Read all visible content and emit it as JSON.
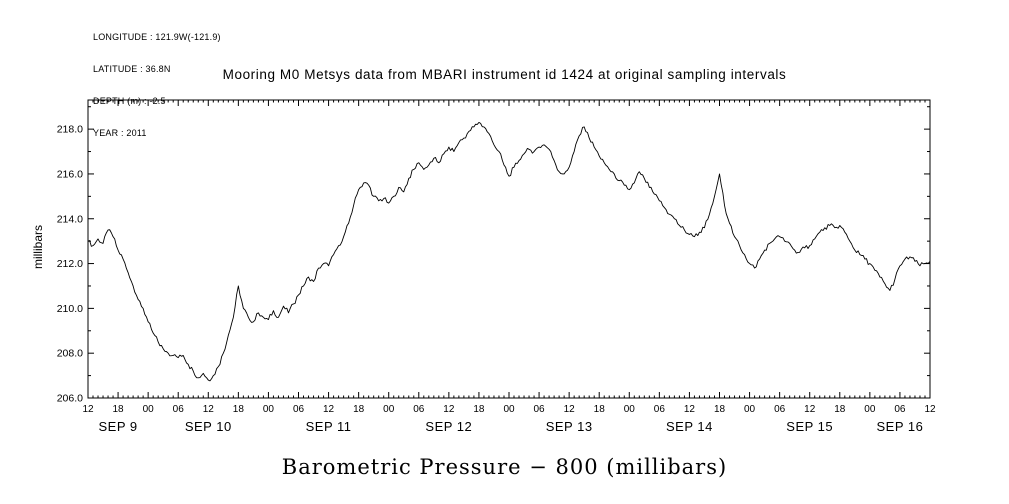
{
  "meta": {
    "lines": [
      "LONGITUDE : 121.9W(-121.9)",
      "LATITUDE : 36.8N",
      "DEPTH (m) : -2.5",
      "YEAR : 2011"
    ]
  },
  "title": "Mooring M0 Metsys data from MBARI instrument id 1424 at original sampling intervals",
  "bottom_title": "Barometric Pressure − 800 (millibars)",
  "chart_data": {
    "type": "line",
    "title": "Mooring M0 Metsys data from MBARI instrument id 1424 at original sampling intervals",
    "xlabel": "Barometric Pressure − 800 (millibars)",
    "ylabel": "millibars",
    "line_color": "#000000",
    "background": "#ffffff",
    "grid": false,
    "legend": "none",
    "ylim": [
      206.0,
      219.3
    ],
    "ytick_step_major": 2.0,
    "ytick_step_minor": 1.0,
    "ytick_labels": [
      "206.0",
      "208.0",
      "210.0",
      "212.0",
      "214.0",
      "216.0",
      "218.0"
    ],
    "x_start_hour_of_day": 12,
    "x_total_hours": 168,
    "x_major_step_hours": 6,
    "x_minor_step_hours": 1,
    "x_tick_labels": [
      "12",
      "18",
      "00",
      "06",
      "12",
      "18",
      "00",
      "06",
      "12",
      "18",
      "00",
      "06",
      "12",
      "18",
      "00",
      "06",
      "12",
      "18",
      "00",
      "06",
      "12",
      "18",
      "00",
      "06",
      "12",
      "18",
      "00",
      "06",
      "12"
    ],
    "day_labels": [
      {
        "label": "SEP 9",
        "center_hour": 6
      },
      {
        "label": "SEP 10",
        "center_hour": 24
      },
      {
        "label": "SEP 11",
        "center_hour": 48
      },
      {
        "label": "SEP 12",
        "center_hour": 72
      },
      {
        "label": "SEP 13",
        "center_hour": 96
      },
      {
        "label": "SEP 14",
        "center_hour": 120
      },
      {
        "label": "SEP 15",
        "center_hour": 144
      },
      {
        "label": "SEP 16",
        "center_hour": 162
      }
    ],
    "x_unit": "hours since Sep 9 12:00, 2011",
    "x_step_hours": 1,
    "values": [
      213.0,
      212.8,
      213.1,
      212.9,
      213.5,
      213.2,
      212.6,
      212.2,
      211.6,
      211.0,
      210.4,
      210.0,
      209.4,
      208.9,
      208.5,
      208.2,
      208.0,
      207.9,
      207.8,
      207.9,
      207.5,
      207.2,
      206.9,
      207.1,
      206.8,
      207.0,
      207.4,
      208.0,
      208.8,
      209.6,
      211.0,
      210.0,
      209.6,
      209.4,
      209.8,
      209.6,
      209.5,
      209.9,
      209.6,
      210.1,
      209.8,
      210.2,
      210.6,
      211.0,
      211.4,
      211.2,
      211.8,
      212.0,
      211.9,
      212.4,
      212.8,
      213.2,
      213.8,
      214.6,
      215.3,
      215.6,
      215.5,
      215.0,
      214.8,
      214.9,
      214.7,
      215.0,
      215.4,
      215.2,
      215.8,
      216.2,
      216.5,
      216.2,
      216.4,
      216.7,
      216.5,
      216.9,
      217.2,
      217.0,
      217.4,
      217.6,
      217.9,
      218.1,
      218.3,
      218.1,
      217.8,
      217.3,
      217.0,
      216.4,
      215.9,
      216.3,
      216.6,
      216.9,
      217.1,
      217.0,
      217.2,
      217.3,
      217.1,
      216.6,
      216.1,
      216.0,
      216.3,
      217.0,
      217.7,
      218.1,
      217.6,
      217.2,
      216.8,
      216.5,
      216.2,
      216.0,
      215.7,
      215.5,
      215.3,
      215.6,
      216.1,
      215.8,
      215.4,
      215.1,
      214.8,
      214.5,
      214.2,
      214.0,
      213.7,
      213.5,
      213.3,
      213.2,
      213.4,
      213.6,
      214.2,
      215.0,
      216.0,
      214.6,
      213.8,
      213.2,
      212.8,
      212.4,
      212.0,
      211.8,
      212.2,
      212.6,
      212.9,
      213.1,
      213.2,
      213.0,
      212.9,
      212.6,
      212.5,
      212.7,
      212.8,
      213.1,
      213.4,
      213.6,
      213.7,
      213.6,
      213.7,
      213.4,
      213.0,
      212.6,
      212.4,
      212.2,
      212.0,
      211.7,
      211.4,
      211.1,
      210.8,
      211.3,
      211.9,
      212.2,
      212.3,
      212.1,
      211.9,
      212.0,
      212.1
    ]
  }
}
